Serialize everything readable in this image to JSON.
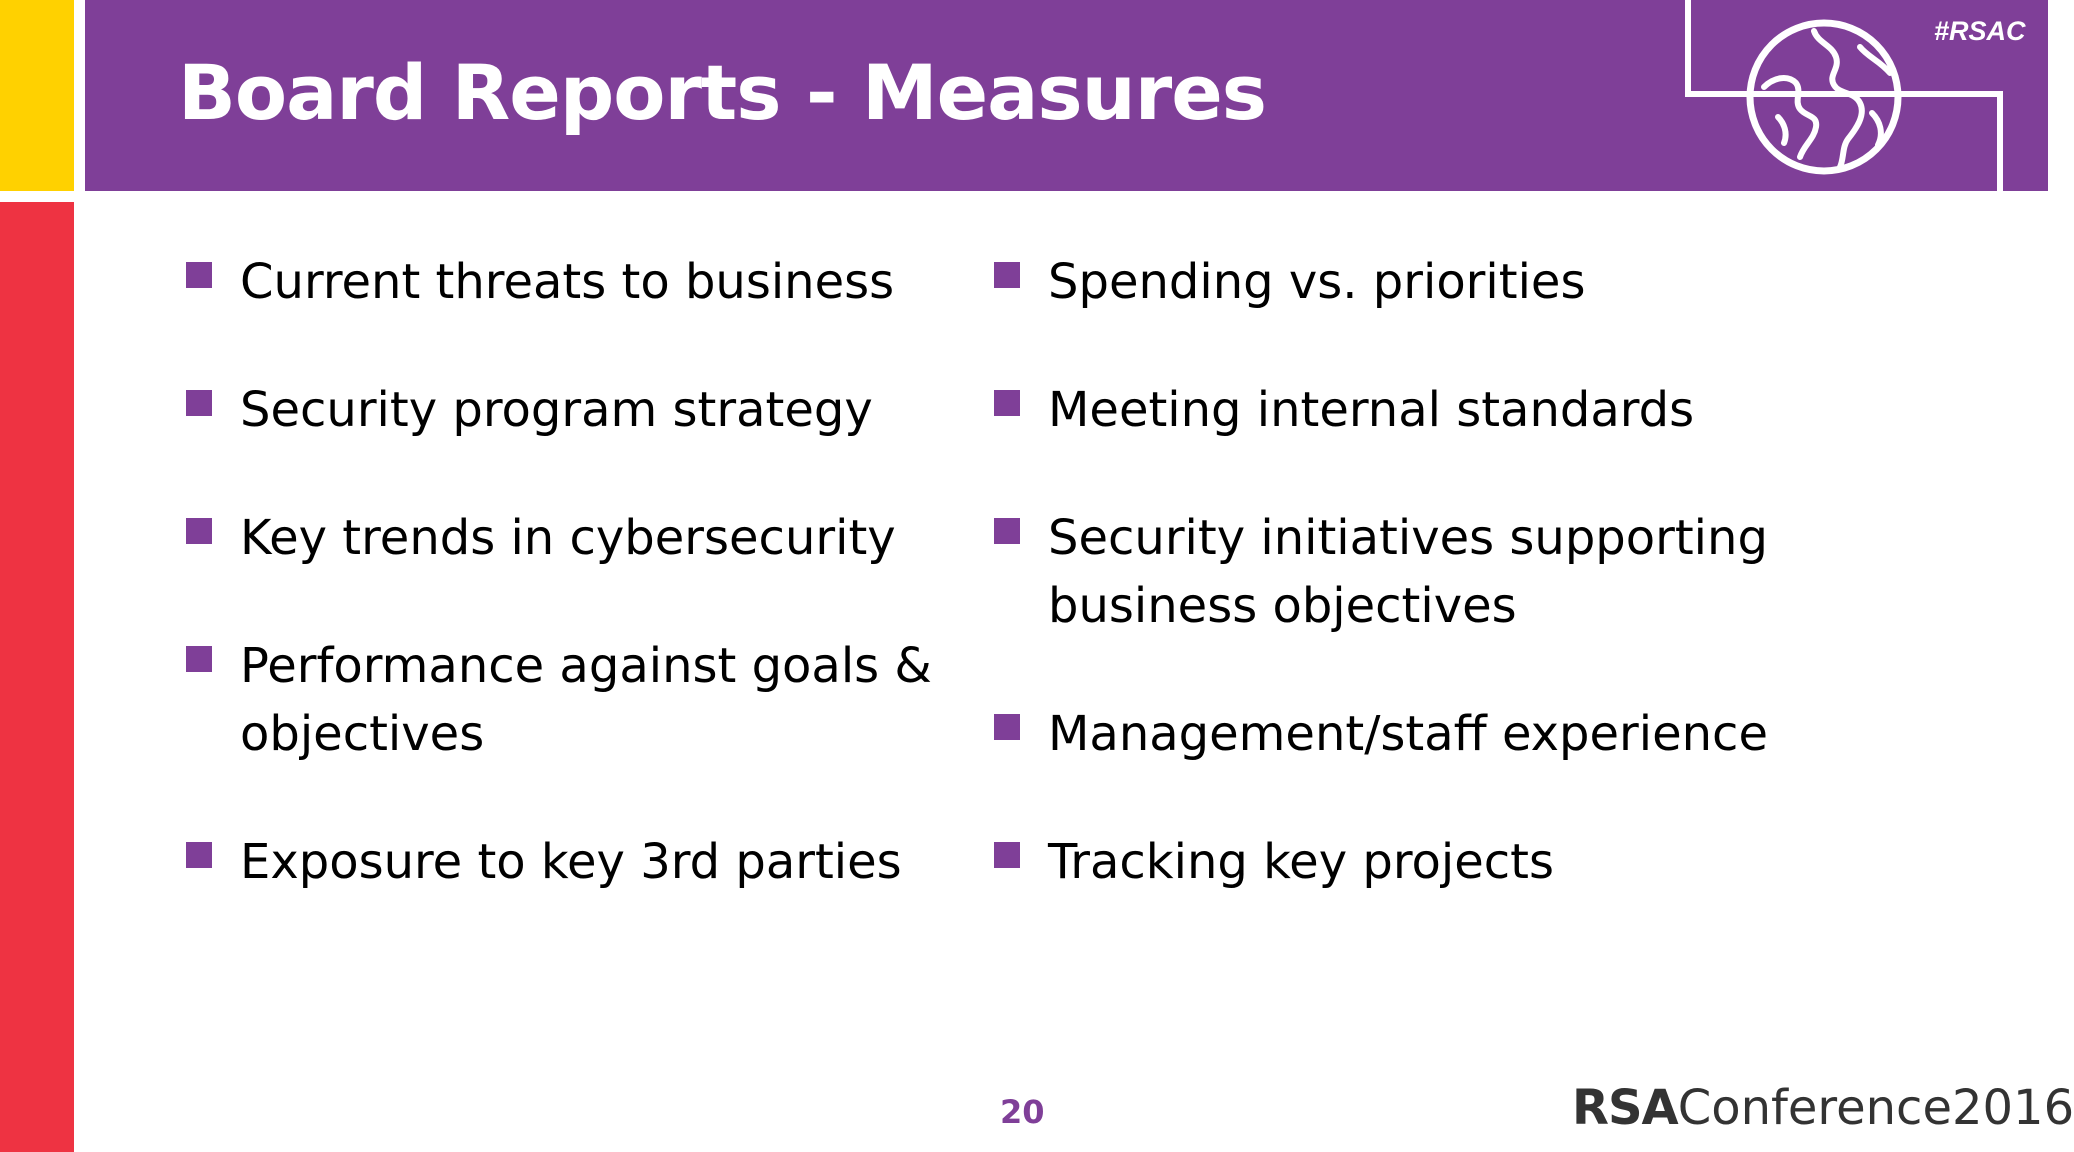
{
  "slide": {
    "title": "Board Reports - Measures",
    "hashtag": "#RSAC",
    "page_number": "20",
    "footer": {
      "brand": "RSA",
      "event": "Conference2016"
    }
  },
  "left_column": [
    "Current threats to business",
    "Security program strategy",
    "Key trends in cybersecurity",
    "Performance against goals & objectives",
    "Exposure to key 3rd parties"
  ],
  "right_column": [
    "Spending vs. priorities",
    "Meeting internal standards",
    "Security initiatives supporting business objectives",
    "Management/staff experience",
    "Tracking key projects"
  ],
  "colors": {
    "purple": "#7F3F98",
    "yellow": "#FFD100",
    "red": "#EE3342",
    "text": "#000000"
  },
  "icons": [
    "globe-icon",
    "square-bullet-icon"
  ]
}
